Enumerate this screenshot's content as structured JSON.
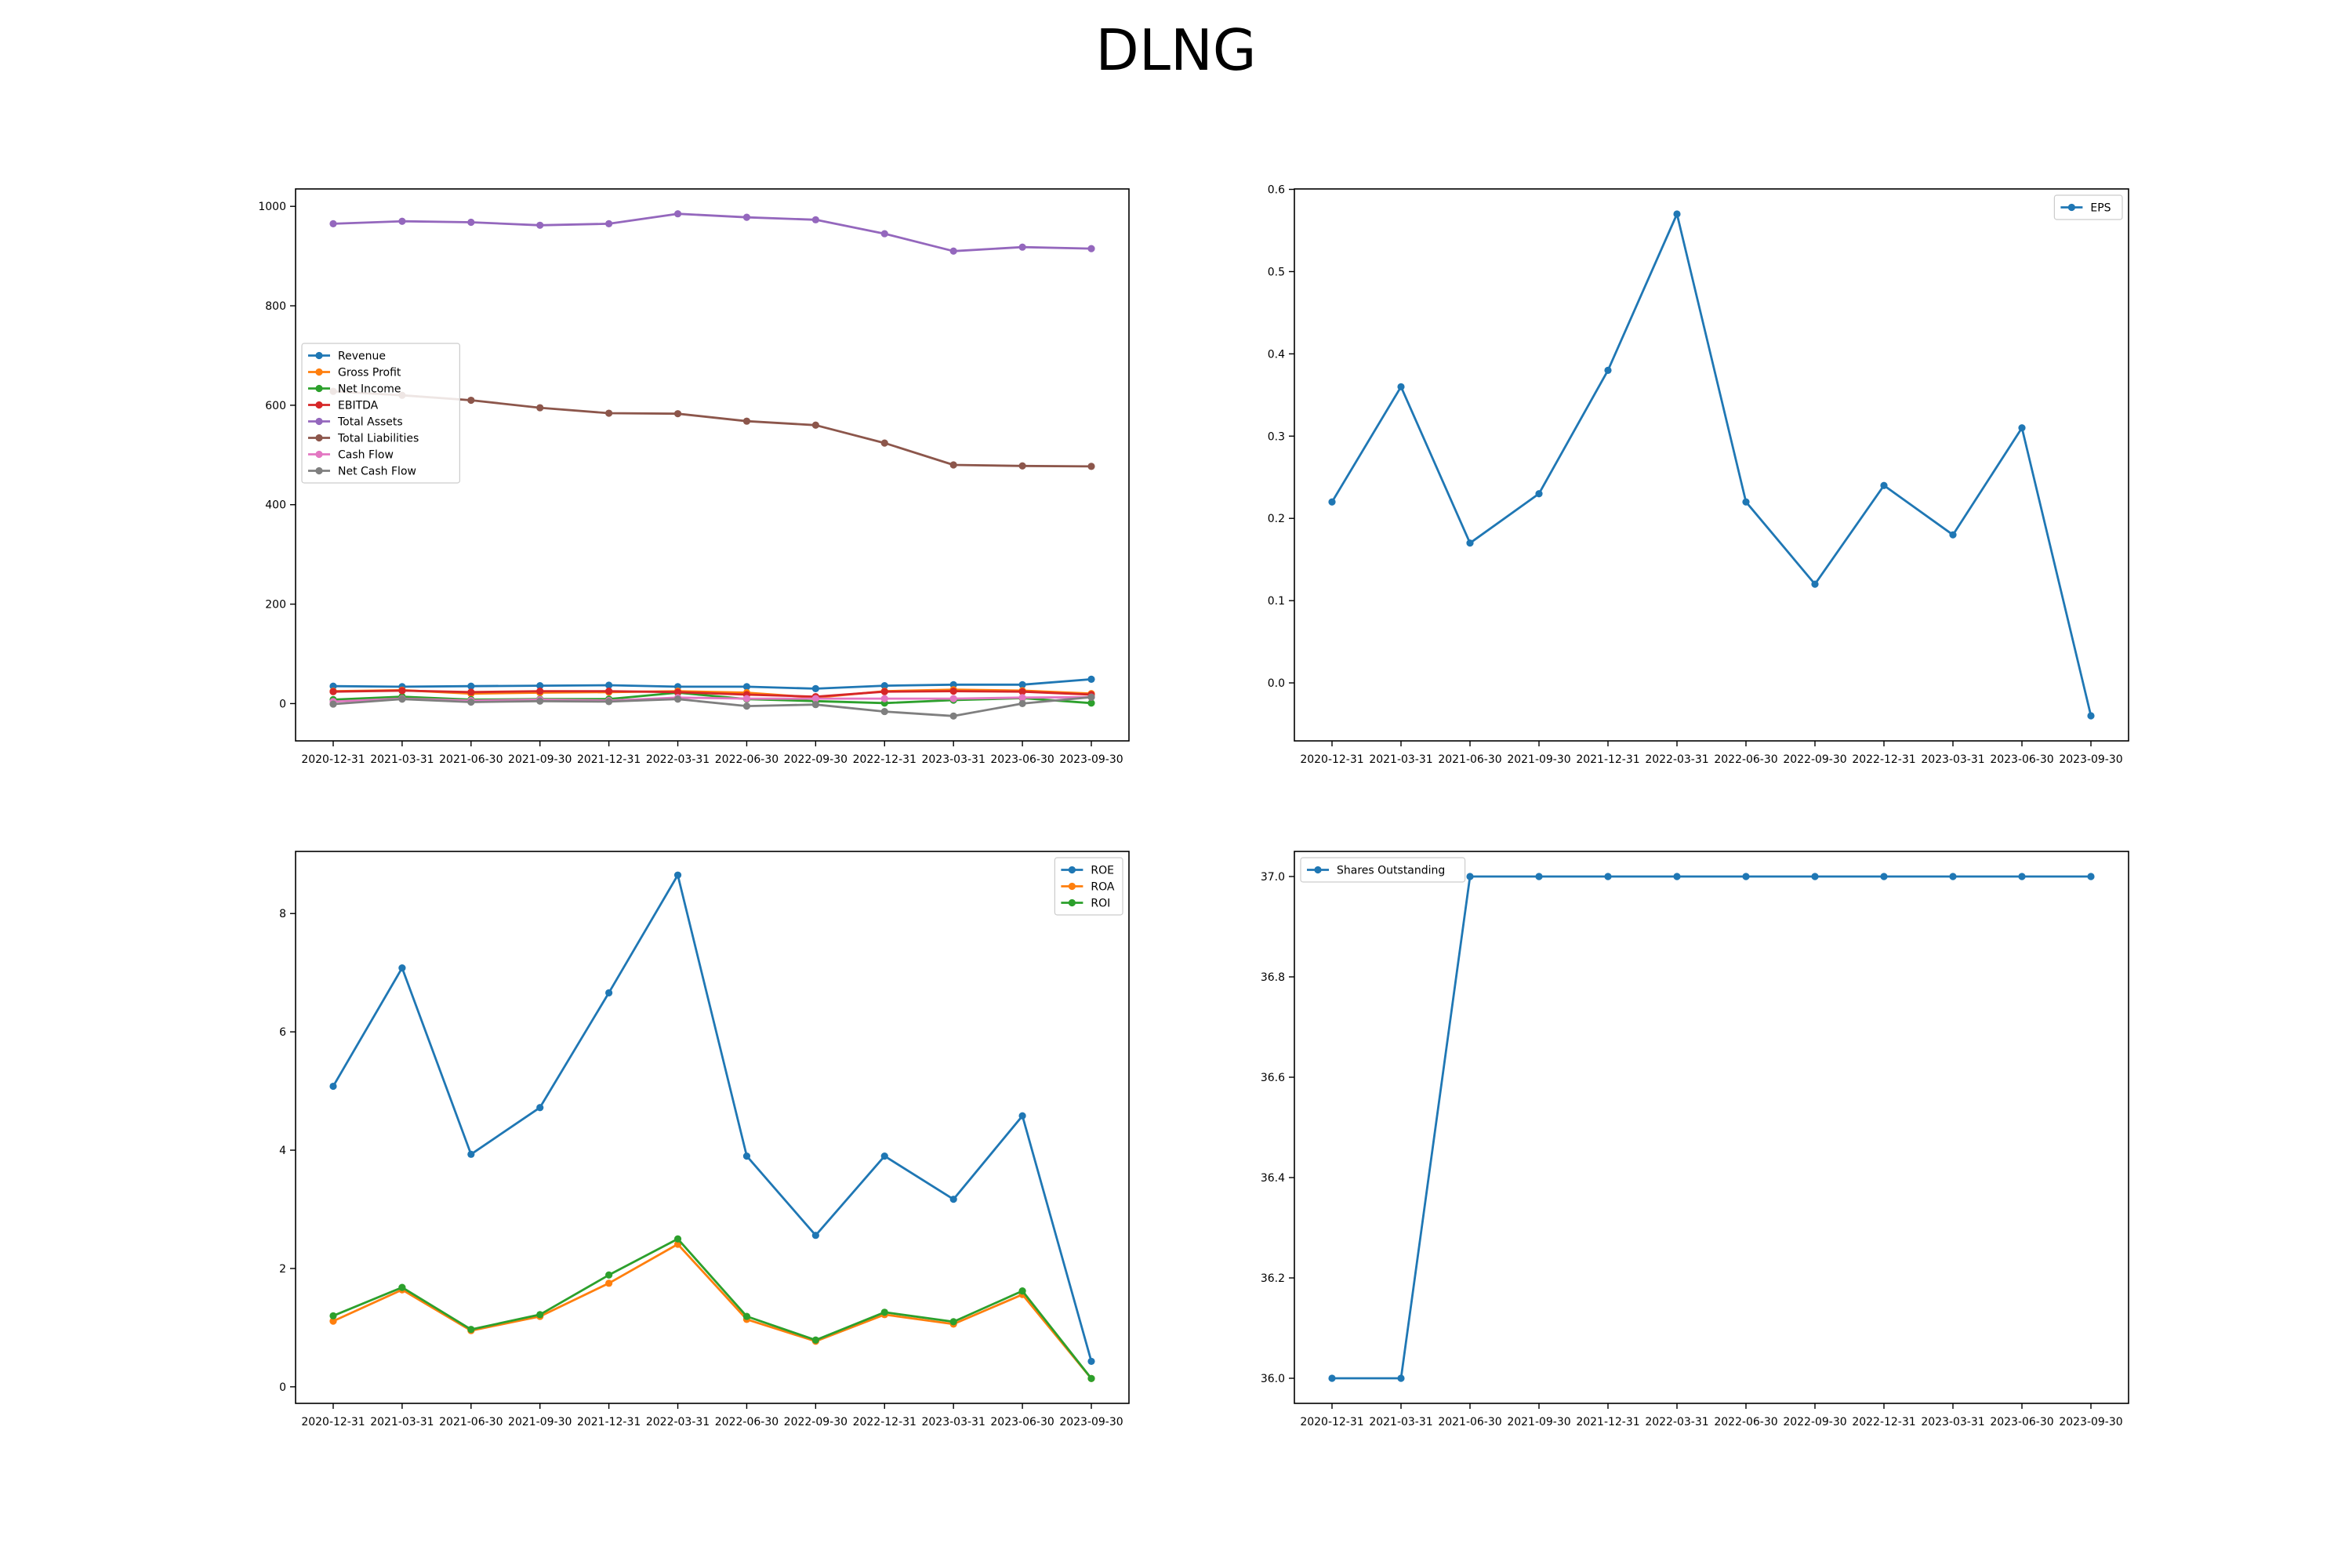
{
  "figure": {
    "title": "DLNG"
  },
  "colors": {
    "blue": "#1f77b4",
    "orange": "#ff7f0e",
    "green": "#2ca02c",
    "red": "#d62728",
    "purple": "#9467bd",
    "brown": "#8c564b",
    "pink": "#e377c2",
    "gray": "#7f7f7f"
  },
  "chart_data": [
    {
      "type": "line",
      "categories": [
        "2020-12-31",
        "2021-03-31",
        "2021-06-30",
        "2021-09-30",
        "2021-12-31",
        "2022-03-31",
        "2022-06-30",
        "2022-09-30",
        "2022-12-31",
        "2023-03-31",
        "2023-06-30",
        "2023-09-30"
      ],
      "ylim": [
        -75,
        1035
      ],
      "yticks": [
        0,
        200,
        400,
        600,
        800,
        1000
      ],
      "legend": "center-left",
      "grid": false,
      "series": [
        {
          "name": "Revenue",
          "color": "#1f77b4",
          "values": [
            35,
            34,
            35,
            36,
            37,
            34,
            34,
            30,
            36,
            38,
            38,
            49
          ]
        },
        {
          "name": "Gross Profit",
          "color": "#ff7f0e",
          "values": [
            25,
            27,
            20,
            22,
            23,
            25,
            22,
            12,
            25,
            28,
            26,
            20
          ]
        },
        {
          "name": "Net Income",
          "color": "#2ca02c",
          "values": [
            8,
            14,
            8,
            9,
            9,
            22,
            9,
            5,
            1,
            7,
            11,
            1
          ]
        },
        {
          "name": "EBITDA",
          "color": "#d62728",
          "values": [
            24,
            26,
            23,
            25,
            25,
            23,
            18,
            14,
            24,
            25,
            24,
            18
          ]
        },
        {
          "name": "Total Assets",
          "color": "#9467bd",
          "values": [
            965,
            970,
            968,
            962,
            965,
            985,
            978,
            973,
            945,
            910,
            918,
            915
          ]
        },
        {
          "name": "Total Liabilities",
          "color": "#8c564b",
          "values": [
            628,
            620,
            610,
            595,
            584,
            583,
            568,
            560,
            524,
            480,
            478,
            477
          ]
        },
        {
          "name": "Cash Flow",
          "color": "#e377c2",
          "values": [
            4,
            10,
            6,
            8,
            6,
            12,
            10,
            10,
            10,
            10,
            12,
            13
          ]
        },
        {
          "name": "Net Cash Flow",
          "color": "#7f7f7f",
          "values": [
            -1,
            9,
            3,
            5,
            4,
            9,
            -5,
            -2,
            -16,
            -25,
            0,
            13
          ]
        }
      ]
    },
    {
      "type": "line",
      "categories": [
        "2020-12-31",
        "2021-03-31",
        "2021-06-30",
        "2021-09-30",
        "2021-12-31",
        "2022-03-31",
        "2022-06-30",
        "2022-09-30",
        "2022-12-31",
        "2023-03-31",
        "2023-06-30",
        "2023-09-30"
      ],
      "ylim": [
        -0.0705,
        0.6005
      ],
      "yticks": [
        0.0,
        0.1,
        0.2,
        0.3,
        0.4,
        0.5,
        0.6
      ],
      "ytick_labels": [
        "0.0",
        "0.1",
        "0.2",
        "0.3",
        "0.4",
        "0.5",
        "0.6"
      ],
      "legend": "top-right",
      "grid": false,
      "series": [
        {
          "name": "EPS",
          "color": "#1f77b4",
          "values": [
            0.22,
            0.36,
            0.17,
            0.23,
            0.38,
            0.57,
            0.22,
            0.12,
            0.24,
            0.18,
            0.31,
            -0.04
          ]
        }
      ]
    },
    {
      "type": "line",
      "categories": [
        "2020-12-31",
        "2021-03-31",
        "2021-06-30",
        "2021-09-30",
        "2021-12-31",
        "2022-03-31",
        "2022-06-30",
        "2022-09-30",
        "2022-12-31",
        "2023-03-31",
        "2023-06-30",
        "2023-09-30"
      ],
      "ylim": [
        -0.28,
        9.05
      ],
      "yticks": [
        0,
        2,
        4,
        6,
        8
      ],
      "legend": "top-right",
      "grid": false,
      "series": [
        {
          "name": "ROE",
          "color": "#1f77b4",
          "values": [
            5.08,
            7.08,
            3.93,
            4.72,
            6.66,
            8.65,
            3.9,
            2.56,
            3.9,
            3.17,
            4.58,
            0.43
          ]
        },
        {
          "name": "ROA",
          "color": "#ff7f0e",
          "values": [
            1.11,
            1.64,
            0.95,
            1.19,
            1.75,
            2.41,
            1.14,
            0.77,
            1.22,
            1.06,
            1.56,
            0.14
          ]
        },
        {
          "name": "ROI",
          "color": "#2ca02c",
          "values": [
            1.2,
            1.68,
            0.97,
            1.22,
            1.89,
            2.5,
            1.19,
            0.79,
            1.26,
            1.1,
            1.62,
            0.14
          ]
        }
      ]
    },
    {
      "type": "line",
      "categories": [
        "2020-12-31",
        "2021-03-31",
        "2021-06-30",
        "2021-09-30",
        "2021-12-31",
        "2022-03-31",
        "2022-06-30",
        "2022-09-30",
        "2022-12-31",
        "2023-03-31",
        "2023-06-30",
        "2023-09-30"
      ],
      "ylim": [
        35.95,
        37.05
      ],
      "yticks": [
        36.0,
        36.2,
        36.4,
        36.6,
        36.8,
        37.0
      ],
      "ytick_labels": [
        "36.0",
        "36.2",
        "36.4",
        "36.6",
        "36.8",
        "37.0"
      ],
      "legend": "top-left",
      "grid": false,
      "series": [
        {
          "name": "Shares Outstanding",
          "color": "#1f77b4",
          "values": [
            36,
            36,
            37,
            37,
            37,
            37,
            37,
            37,
            37,
            37,
            37,
            37
          ]
        }
      ]
    }
  ]
}
